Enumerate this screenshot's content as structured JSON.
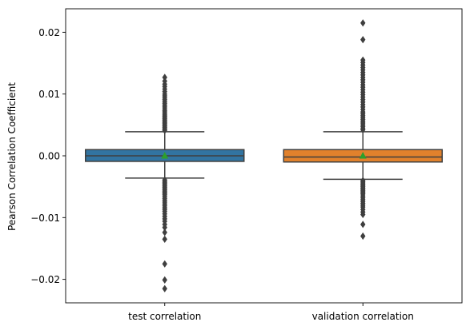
{
  "chart_data": {
    "type": "box",
    "ylabel": "Pearson Correlation Coefficient",
    "xlabel": "",
    "ylim": [
      -0.0238,
      0.0238
    ],
    "yticks": [
      -0.02,
      -0.01,
      0.0,
      0.01,
      0.02
    ],
    "ytick_labels": [
      "−0.02",
      "−0.01",
      "0.00",
      "0.01",
      "0.02"
    ],
    "grid": false,
    "legend": "none",
    "colors": {
      "test correlation": "#3274a1",
      "validation correlation": "#e1812c",
      "mean_marker": "#2ca02c",
      "lines": "#3f3f3f"
    },
    "series": [
      {
        "category": "test correlation",
        "q1": -0.0009,
        "median": 0.0,
        "q3": 0.001,
        "whisker_low": -0.0036,
        "whisker_high": 0.0039,
        "mean": 0.0,
        "outliers": [
          0.0127,
          0.0121,
          0.0116,
          0.0112,
          0.0108,
          0.0104,
          0.01,
          0.0097,
          0.0094,
          0.0091,
          0.0088,
          0.0085,
          0.0082,
          0.0079,
          0.0076,
          0.0073,
          0.0071,
          0.0068,
          0.0066,
          0.0064,
          0.0062,
          0.006,
          0.0058,
          0.0056,
          0.0054,
          0.0052,
          0.005,
          0.0048,
          0.0046,
          0.0044,
          0.0042,
          0.0041,
          -0.0039,
          -0.0041,
          -0.0043,
          -0.0045,
          -0.0047,
          -0.0049,
          -0.0051,
          -0.0053,
          -0.0055,
          -0.0057,
          -0.0059,
          -0.0061,
          -0.0063,
          -0.0066,
          -0.0069,
          -0.0072,
          -0.0075,
          -0.0078,
          -0.0081,
          -0.0084,
          -0.0087,
          -0.009,
          -0.0094,
          -0.0098,
          -0.0102,
          -0.0106,
          -0.0111,
          -0.0116,
          -0.0124,
          -0.0135,
          -0.0175,
          -0.0201,
          -0.0215
        ]
      },
      {
        "category": "validation correlation",
        "q1": -0.001,
        "median": -0.0002,
        "q3": 0.001,
        "whisker_low": -0.0038,
        "whisker_high": 0.0039,
        "mean": 0.0,
        "outliers": [
          0.0215,
          0.0188,
          0.0155,
          0.0151,
          0.0147,
          0.0143,
          0.0139,
          0.0135,
          0.0131,
          0.0127,
          0.0123,
          0.0119,
          0.0115,
          0.0111,
          0.0107,
          0.0103,
          0.0099,
          0.0095,
          0.0091,
          0.0087,
          0.0083,
          0.0079,
          0.0075,
          0.0071,
          0.0068,
          0.0065,
          0.0062,
          0.0059,
          0.0056,
          0.0053,
          0.005,
          0.0047,
          0.0044,
          0.0042,
          -0.004,
          -0.0042,
          -0.0044,
          -0.0046,
          -0.0048,
          -0.005,
          -0.0052,
          -0.0054,
          -0.0056,
          -0.0058,
          -0.006,
          -0.0062,
          -0.0065,
          -0.0068,
          -0.0071,
          -0.0074,
          -0.0077,
          -0.008,
          -0.0083,
          -0.0087,
          -0.0091,
          -0.0095,
          -0.0111,
          -0.013
        ]
      }
    ]
  }
}
